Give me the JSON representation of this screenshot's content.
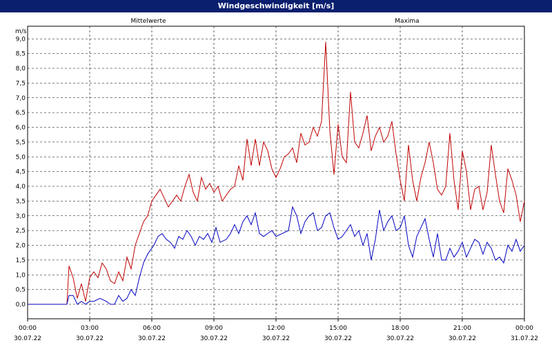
{
  "window": {
    "title": "Windgeschwindigkeit [m/s]"
  },
  "chart_data": {
    "type": "line",
    "title": "Windgeschwindigkeit [m/s]",
    "ylabel": "m/s",
    "ylim": [
      0,
      9.3
    ],
    "xlim_hours": [
      0,
      24
    ],
    "grid": true,
    "legend": "top",
    "y_ticks": [
      "0,0",
      "0,5",
      "1,0",
      "1,5",
      "2,0",
      "2,5",
      "3,0",
      "3,5",
      "4,0",
      "4,5",
      "5,0",
      "5,5",
      "6,0",
      "6,5",
      "7,0",
      "7,5",
      "8,0",
      "8,5",
      "9,0"
    ],
    "x_ticks": [
      {
        "time": "00:00",
        "date": "30.07.22"
      },
      {
        "time": "03:00",
        "date": "30.07.22"
      },
      {
        "time": "06:00",
        "date": "30.07.22"
      },
      {
        "time": "09:00",
        "date": "30.07.22"
      },
      {
        "time": "12:00",
        "date": "30.07.22"
      },
      {
        "time": "15:00",
        "date": "30.07.22"
      },
      {
        "time": "18:00",
        "date": "30.07.22"
      },
      {
        "time": "21:00",
        "date": "30.07.22"
      },
      {
        "time": "00:00",
        "date": "31.07.22"
      }
    ],
    "series": [
      {
        "name": "Mittelwerte",
        "color": "#0000c0",
        "points": [
          [
            0,
            0
          ],
          [
            1.9,
            0
          ],
          [
            2.0,
            0.3
          ],
          [
            2.2,
            0.3
          ],
          [
            2.4,
            0
          ],
          [
            2.6,
            0.1
          ],
          [
            2.8,
            0
          ],
          [
            3.0,
            0.1
          ],
          [
            3.2,
            0.1
          ],
          [
            3.5,
            0.2
          ],
          [
            3.8,
            0.1
          ],
          [
            4.0,
            0
          ],
          [
            4.2,
            0
          ],
          [
            4.4,
            0.3
          ],
          [
            4.6,
            0.1
          ],
          [
            4.8,
            0.2
          ],
          [
            5.0,
            0.5
          ],
          [
            5.2,
            0.3
          ],
          [
            5.4,
            0.9
          ],
          [
            5.6,
            1.4
          ],
          [
            5.8,
            1.7
          ],
          [
            6.1,
            2.0
          ],
          [
            6.3,
            2.3
          ],
          [
            6.5,
            2.4
          ],
          [
            6.7,
            2.2
          ],
          [
            6.9,
            2.1
          ],
          [
            7.1,
            1.9
          ],
          [
            7.3,
            2.3
          ],
          [
            7.5,
            2.2
          ],
          [
            7.7,
            2.5
          ],
          [
            7.9,
            2.3
          ],
          [
            8.1,
            2.0
          ],
          [
            8.3,
            2.3
          ],
          [
            8.5,
            2.2
          ],
          [
            8.7,
            2.4
          ],
          [
            8.9,
            2.1
          ],
          [
            9.1,
            2.6
          ],
          [
            9.3,
            2.1
          ],
          [
            9.6,
            2.2
          ],
          [
            9.8,
            2.4
          ],
          [
            10.0,
            2.7
          ],
          [
            10.2,
            2.4
          ],
          [
            10.4,
            2.8
          ],
          [
            10.6,
            3.0
          ],
          [
            10.8,
            2.7
          ],
          [
            11.0,
            3.1
          ],
          [
            11.2,
            2.4
          ],
          [
            11.4,
            2.3
          ],
          [
            11.6,
            2.4
          ],
          [
            11.8,
            2.5
          ],
          [
            12.0,
            2.3
          ],
          [
            12.3,
            2.4
          ],
          [
            12.6,
            2.5
          ],
          [
            12.8,
            3.3
          ],
          [
            13.0,
            3.0
          ],
          [
            13.2,
            2.4
          ],
          [
            13.4,
            2.8
          ],
          [
            13.6,
            3.0
          ],
          [
            13.8,
            3.1
          ],
          [
            14.0,
            2.5
          ],
          [
            14.2,
            2.6
          ],
          [
            14.4,
            3.0
          ],
          [
            14.6,
            3.1
          ],
          [
            14.8,
            2.6
          ],
          [
            15.0,
            2.2
          ],
          [
            15.2,
            2.3
          ],
          [
            15.4,
            2.5
          ],
          [
            15.6,
            2.7
          ],
          [
            15.8,
            2.3
          ],
          [
            16.0,
            2.5
          ],
          [
            16.2,
            2.0
          ],
          [
            16.4,
            2.4
          ],
          [
            16.6,
            1.5
          ],
          [
            16.8,
            2.2
          ],
          [
            17.0,
            3.2
          ],
          [
            17.2,
            2.5
          ],
          [
            17.4,
            2.8
          ],
          [
            17.6,
            3.0
          ],
          [
            17.8,
            2.5
          ],
          [
            18.0,
            2.6
          ],
          [
            18.2,
            3.0
          ],
          [
            18.4,
            2.0
          ],
          [
            18.6,
            1.6
          ],
          [
            18.8,
            2.3
          ],
          [
            19.0,
            2.6
          ],
          [
            19.2,
            2.9
          ],
          [
            19.4,
            2.2
          ],
          [
            19.6,
            1.6
          ],
          [
            19.8,
            2.4
          ],
          [
            20.0,
            1.5
          ],
          [
            20.2,
            1.5
          ],
          [
            20.4,
            1.9
          ],
          [
            20.6,
            1.6
          ],
          [
            20.8,
            1.8
          ],
          [
            21.0,
            2.1
          ],
          [
            21.2,
            1.6
          ],
          [
            21.4,
            1.9
          ],
          [
            21.6,
            2.2
          ],
          [
            21.8,
            2.1
          ],
          [
            22.0,
            1.7
          ],
          [
            22.2,
            2.1
          ],
          [
            22.4,
            1.9
          ],
          [
            22.6,
            1.5
          ],
          [
            22.8,
            1.6
          ],
          [
            23.0,
            1.4
          ],
          [
            23.2,
            2.0
          ],
          [
            23.4,
            1.8
          ],
          [
            23.6,
            2.2
          ],
          [
            23.8,
            1.8
          ],
          [
            24.0,
            2.0
          ]
        ]
      },
      {
        "name": "Maxima",
        "color": "#c00000",
        "points": [
          [
            0,
            0
          ],
          [
            1.9,
            0
          ],
          [
            2.0,
            1.3
          ],
          [
            2.2,
            0.9
          ],
          [
            2.4,
            0.2
          ],
          [
            2.6,
            0.7
          ],
          [
            2.8,
            0.1
          ],
          [
            3.0,
            0.9
          ],
          [
            3.2,
            1.1
          ],
          [
            3.4,
            0.9
          ],
          [
            3.6,
            1.4
          ],
          [
            3.8,
            1.2
          ],
          [
            4.0,
            0.8
          ],
          [
            4.2,
            0.7
          ],
          [
            4.4,
            1.1
          ],
          [
            4.6,
            0.8
          ],
          [
            4.8,
            1.6
          ],
          [
            5.0,
            1.2
          ],
          [
            5.2,
            2.0
          ],
          [
            5.4,
            2.4
          ],
          [
            5.6,
            2.8
          ],
          [
            5.8,
            3.0
          ],
          [
            6.0,
            3.5
          ],
          [
            6.2,
            3.7
          ],
          [
            6.4,
            3.9
          ],
          [
            6.6,
            3.6
          ],
          [
            6.8,
            3.3
          ],
          [
            7.0,
            3.5
          ],
          [
            7.2,
            3.7
          ],
          [
            7.4,
            3.5
          ],
          [
            7.6,
            4.0
          ],
          [
            7.8,
            4.4
          ],
          [
            8.0,
            3.8
          ],
          [
            8.2,
            3.5
          ],
          [
            8.4,
            4.3
          ],
          [
            8.6,
            3.9
          ],
          [
            8.8,
            4.1
          ],
          [
            9.0,
            3.8
          ],
          [
            9.2,
            4.0
          ],
          [
            9.4,
            3.5
          ],
          [
            9.6,
            3.7
          ],
          [
            9.8,
            3.9
          ],
          [
            10.0,
            4.0
          ],
          [
            10.2,
            4.7
          ],
          [
            10.4,
            4.2
          ],
          [
            10.6,
            5.6
          ],
          [
            10.8,
            4.7
          ],
          [
            11.0,
            5.6
          ],
          [
            11.2,
            4.7
          ],
          [
            11.4,
            5.5
          ],
          [
            11.6,
            5.2
          ],
          [
            11.8,
            4.6
          ],
          [
            12.0,
            4.3
          ],
          [
            12.2,
            4.6
          ],
          [
            12.4,
            5.0
          ],
          [
            12.6,
            5.1
          ],
          [
            12.8,
            5.3
          ],
          [
            13.0,
            4.8
          ],
          [
            13.2,
            5.8
          ],
          [
            13.4,
            5.4
          ],
          [
            13.6,
            5.5
          ],
          [
            13.8,
            6.0
          ],
          [
            14.0,
            5.7
          ],
          [
            14.2,
            6.2
          ],
          [
            14.4,
            8.9
          ],
          [
            14.6,
            5.9
          ],
          [
            14.8,
            4.4
          ],
          [
            15.0,
            6.1
          ],
          [
            15.2,
            5.0
          ],
          [
            15.4,
            4.8
          ],
          [
            15.6,
            7.2
          ],
          [
            15.8,
            5.5
          ],
          [
            16.0,
            5.3
          ],
          [
            16.2,
            5.8
          ],
          [
            16.4,
            6.4
          ],
          [
            16.6,
            5.2
          ],
          [
            16.8,
            5.7
          ],
          [
            17.0,
            6.0
          ],
          [
            17.2,
            5.5
          ],
          [
            17.4,
            5.7
          ],
          [
            17.6,
            6.2
          ],
          [
            17.8,
            5.1
          ],
          [
            18.0,
            4.2
          ],
          [
            18.2,
            3.5
          ],
          [
            18.4,
            5.4
          ],
          [
            18.6,
            4.2
          ],
          [
            18.8,
            3.5
          ],
          [
            19.0,
            4.3
          ],
          [
            19.2,
            4.8
          ],
          [
            19.4,
            5.5
          ],
          [
            19.6,
            4.8
          ],
          [
            19.8,
            3.9
          ],
          [
            20.0,
            3.7
          ],
          [
            20.2,
            4.0
          ],
          [
            20.4,
            5.8
          ],
          [
            20.6,
            4.2
          ],
          [
            20.8,
            3.2
          ],
          [
            21.0,
            5.2
          ],
          [
            21.2,
            4.5
          ],
          [
            21.4,
            3.2
          ],
          [
            21.6,
            3.9
          ],
          [
            21.8,
            4.0
          ],
          [
            22.0,
            3.2
          ],
          [
            22.2,
            3.8
          ],
          [
            22.4,
            5.4
          ],
          [
            22.6,
            4.4
          ],
          [
            22.8,
            3.5
          ],
          [
            23.0,
            3.1
          ],
          [
            23.2,
            4.6
          ],
          [
            23.4,
            4.2
          ],
          [
            23.6,
            3.7
          ],
          [
            23.8,
            2.8
          ],
          [
            24.0,
            3.5
          ]
        ]
      }
    ]
  }
}
